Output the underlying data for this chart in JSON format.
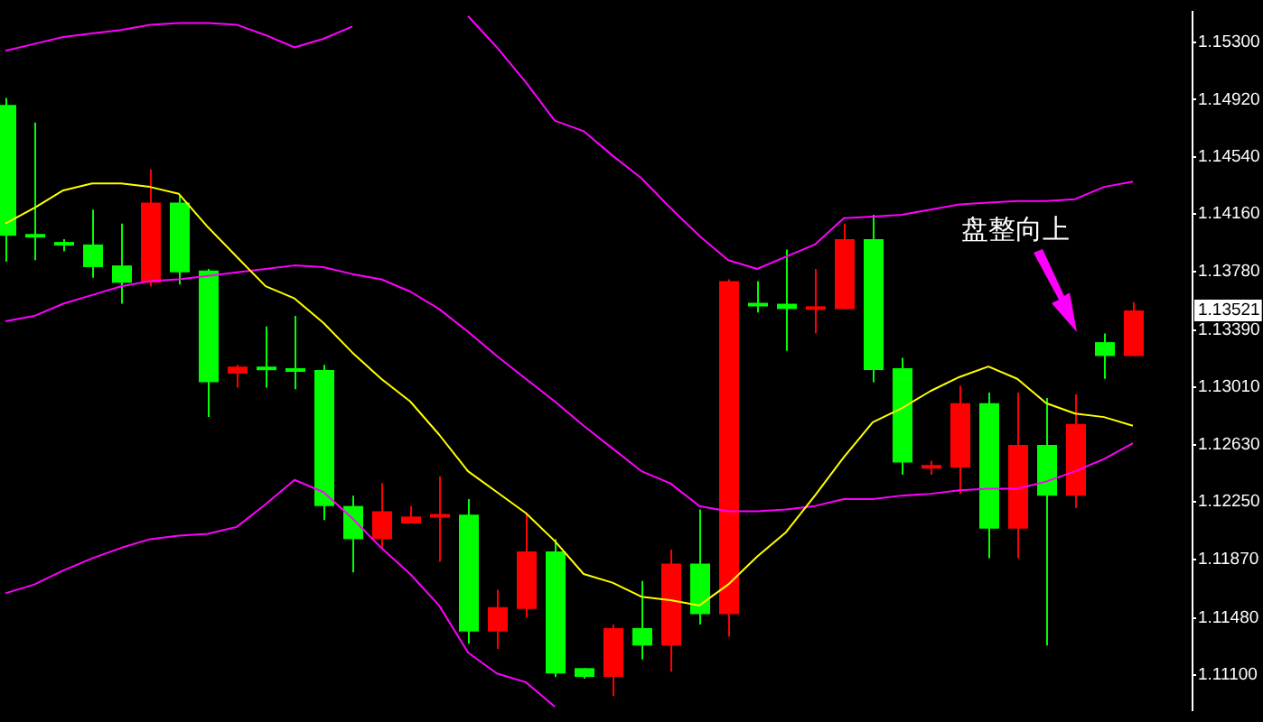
{
  "chart_data": {
    "type": "candlestick",
    "categories": [
      null,
      null,
      null,
      null,
      null,
      null,
      null,
      null,
      null,
      null,
      null,
      null,
      null,
      null,
      null,
      null,
      null,
      null,
      null,
      null,
      null,
      null,
      null,
      null,
      null,
      null,
      null,
      null,
      null,
      null,
      null,
      null,
      null,
      null,
      null,
      null,
      null,
      null,
      null,
      null
    ],
    "ohlc": [
      [
        1.14884,
        1.1493,
        1.13843,
        1.14016
      ],
      [
        1.14028,
        1.14768,
        1.13854,
        1.14016
      ],
      [
        1.13975,
        1.13993,
        1.13912,
        1.13955
      ],
      [
        1.13958,
        1.1419,
        1.13738,
        1.13808
      ],
      [
        1.13819,
        1.14097,
        1.13565,
        1.13704
      ],
      [
        1.13704,
        1.14456,
        1.13681,
        1.14236
      ],
      [
        1.14236,
        1.14282,
        1.13692,
        1.13773
      ],
      [
        1.13785,
        1.13796,
        1.12813,
        1.13044
      ],
      [
        1.13102,
        1.1316,
        1.13009,
        1.13148
      ],
      [
        1.13148,
        1.13414,
        1.13009,
        1.13125
      ],
      [
        1.13137,
        1.13484,
        1.12998,
        1.13114
      ],
      [
        1.13125,
        1.1316,
        1.1213,
        1.12223
      ],
      [
        1.12223,
        1.12292,
        1.11783,
        1.12003
      ],
      [
        1.12003,
        1.12373,
        1.11945,
        1.12188
      ],
      [
        1.12107,
        1.12223,
        1.12107,
        1.12153
      ],
      [
        1.12153,
        1.12419,
        1.11852,
        1.1217
      ],
      [
        1.12165,
        1.12269,
        1.11309,
        1.1139
      ],
      [
        1.1139,
        1.11667,
        1.11274,
        1.11552
      ],
      [
        1.1154,
        1.12176,
        1.11482,
        1.11922
      ],
      [
        1.11922,
        1.12003,
        1.11089,
        1.11112
      ],
      [
        1.11147,
        1.11147,
        1.11077,
        1.11089
      ],
      [
        1.11089,
        1.11436,
        1.10962,
        1.11413
      ],
      [
        1.11413,
        1.11725,
        1.11205,
        1.11297
      ],
      [
        1.11297,
        1.11933,
        1.11124,
        1.11841
      ],
      [
        1.11841,
        1.122,
        1.11436,
        1.11505
      ],
      [
        1.11505,
        1.13727,
        1.11355,
        1.13715
      ],
      [
        1.13571,
        1.13715,
        1.13507,
        1.13553
      ],
      [
        1.13565,
        1.13924,
        1.13252,
        1.1353
      ],
      [
        1.1353,
        1.13796,
        1.13368,
        1.13548
      ],
      [
        1.1353,
        1.14097,
        1.1353,
        1.13993
      ],
      [
        1.13993,
        1.14155,
        1.13044,
        1.13125
      ],
      [
        1.13137,
        1.13206,
        1.12431,
        1.12512
      ],
      [
        1.12477,
        1.12524,
        1.12431,
        1.12495
      ],
      [
        1.12477,
        1.13021,
        1.12304,
        1.12905
      ],
      [
        1.12905,
        1.12975,
        1.11876,
        1.12072
      ],
      [
        1.12072,
        1.12975,
        1.11876,
        1.12628
      ],
      [
        1.12628,
        1.1294,
        1.11297,
        1.12292
      ],
      [
        1.12292,
        1.12963,
        1.12211,
        1.12767
      ],
      [
        1.1331,
        1.13368,
        1.13067,
        1.13218
      ],
      [
        1.13218,
        1.13576,
        1.13218,
        1.13521
      ]
    ],
    "colors": [
      "#00ff00",
      "#00ff00",
      "#00ff00",
      "#00ff00",
      "#00ff00",
      "#ff0000",
      "#00ff00",
      "#00ff00",
      "#ff0000",
      "#00ff00",
      "#00ff00",
      "#00ff00",
      "#00ff00",
      "#ff0000",
      "#ff0000",
      "#ff0000",
      "#00ff00",
      "#ff0000",
      "#ff0000",
      "#00ff00",
      "#00ff00",
      "#ff0000",
      "#00ff00",
      "#ff0000",
      "#00ff00",
      "#ff0000",
      "#00ff00",
      "#00ff00",
      "#ff0000",
      "#ff0000",
      "#00ff00",
      "#00ff00",
      "#ff0000",
      "#ff0000",
      "#00ff00",
      "#ff0000",
      "#00ff00",
      "#ff0000",
      "#00ff00",
      "#ff0000"
    ],
    "series": [
      {
        "type": "line",
        "color": "#ffff00",
        "values": [
          1.14097,
          1.14201,
          1.14317,
          1.14363,
          1.14363,
          1.1434,
          1.14294,
          1.14074,
          1.13877,
          1.13681,
          1.136,
          1.13438,
          1.13241,
          1.13067,
          1.12917,
          1.12697,
          1.12454,
          1.12315,
          1.12176,
          1.11991,
          1.11772,
          1.11714,
          1.11621,
          1.11598,
          1.11563,
          1.11702,
          1.11887,
          1.12049,
          1.12292,
          1.12547,
          1.12778,
          1.12871,
          1.12986,
          1.13079,
          1.13148,
          1.13067,
          1.12905,
          1.12836,
          1.12813,
          1.12755
        ]
      },
      {
        "type": "line",
        "color": "#ff00ff",
        "values": [
          1.15243,
          1.15289,
          1.15335,
          1.15358,
          1.15381,
          1.15416,
          1.15428,
          1.15428,
          1.15416,
          1.15347,
          1.15266,
          1.15323,
          1.15404,
          null,
          null,
          null,
          1.15474,
          1.15266,
          1.15034,
          1.1478,
          1.1471,
          1.14548,
          1.14398,
          1.14201,
          1.14016,
          1.13854,
          1.13796,
          1.13877,
          1.13958,
          1.14132,
          1.14143,
          1.14155,
          1.1419,
          1.14224,
          1.14236,
          1.14247,
          1.14247,
          1.14259,
          1.1434,
          1.14375
        ]
      },
      {
        "type": "line",
        "color": "#ff00ff",
        "values": [
          1.13449,
          1.13484,
          1.13565,
          1.13623,
          1.13681,
          1.13715,
          1.13727,
          1.1375,
          1.13773,
          1.13796,
          1.13819,
          1.13808,
          1.13762,
          1.13727,
          1.13646,
          1.1353,
          1.1338,
          1.13218,
          1.13067,
          1.12917,
          1.12755,
          1.12605,
          1.12454,
          1.12373,
          1.12223,
          1.12188,
          1.12188,
          1.122,
          1.12223,
          1.12269,
          1.12269,
          1.12292,
          1.12304,
          1.12327,
          1.12338,
          1.12338,
          1.12385,
          1.12454,
          1.12535,
          1.12639
        ]
      },
      {
        "type": "line",
        "color": "#ff00ff",
        "values": [
          1.11644,
          1.11702,
          1.11795,
          1.11876,
          1.11945,
          1.12003,
          1.12026,
          1.12038,
          1.12084,
          1.12234,
          1.12396,
          1.12315,
          1.12142,
          1.11945,
          1.11772,
          1.11563,
          1.11251,
          1.11112,
          1.11054,
          1.10892,
          null,
          null,
          null,
          null,
          null,
          null,
          null,
          null,
          null,
          null,
          null,
          null,
          null,
          null,
          null,
          null,
          null,
          null,
          null,
          null
        ]
      }
    ],
    "ylim": [
      1.1087,
      1.155
    ],
    "yticks": [
      {
        "value": 1.153,
        "label": "1.15300"
      },
      {
        "value": 1.1492,
        "label": "1.14920"
      },
      {
        "value": 1.1454,
        "label": "1.14540"
      },
      {
        "value": 1.1416,
        "label": "1.14160"
      },
      {
        "value": 1.1378,
        "label": "1.13780"
      },
      {
        "value": 1.1339,
        "label": "1.13390"
      },
      {
        "value": 1.1301,
        "label": "1.13010"
      },
      {
        "value": 1.1263,
        "label": "1.12630"
      },
      {
        "value": 1.1225,
        "label": "1.12250"
      },
      {
        "value": 1.1187,
        "label": "1.11870"
      },
      {
        "value": 1.1148,
        "label": "1.11480"
      },
      {
        "value": 1.111,
        "label": "1.11100"
      }
    ],
    "tick_labels": "y",
    "legend": false,
    "marker": "none",
    "line_style": "solid",
    "annotations": [
      "盘整向上",
      "1.13521"
    ]
  }
}
